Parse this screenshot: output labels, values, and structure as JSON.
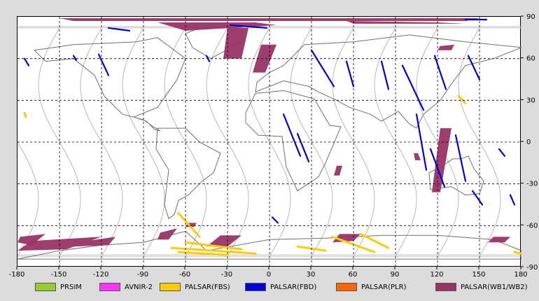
{
  "map": {
    "lon_range": [
      -180,
      180
    ],
    "lat_range": [
      -90,
      90
    ],
    "x_ticks": [
      "-180",
      "-150",
      "-120",
      "-90",
      "-60",
      "-30",
      "0",
      "30",
      "60",
      "90",
      "120",
      "150",
      "180"
    ],
    "y_ticks": [
      "90",
      "60",
      "30",
      "0",
      "-30",
      "-60",
      "-90"
    ]
  },
  "legend": [
    {
      "label": "PRSIM",
      "color": "#99cc33"
    },
    {
      "label": "AVNIR-2",
      "color": "#ff33ff"
    },
    {
      "label": "PALSAR(FBS)",
      "color": "#ffcc00"
    },
    {
      "label": "PALSAR(FBD)",
      "color": "#0000dd"
    },
    {
      "label": "PALSAR(PLR)",
      "color": "#ff6600"
    },
    {
      "label": "PALSAR(WB1/WB2)",
      "color": "#993366"
    }
  ],
  "observations": {
    "wb": [
      [
        [
          -150,
          89
        ],
        [
          150,
          89
        ],
        [
          140,
          87
        ],
        [
          -140,
          87
        ]
      ],
      [
        [
          -80,
          86
        ],
        [
          -10,
          86
        ],
        [
          5,
          84
        ],
        [
          -60,
          80
        ]
      ],
      [
        [
          55,
          87
        ],
        [
          120,
          86
        ],
        [
          140,
          85
        ],
        [
          60,
          85
        ]
      ],
      [
        [
          -30,
          82
        ],
        [
          -15,
          82
        ],
        [
          -20,
          60
        ],
        [
          -33,
          60
        ]
      ],
      [
        [
          -6,
          70
        ],
        [
          5,
          70
        ],
        [
          -3,
          50
        ],
        [
          -12,
          50
        ]
      ],
      [
        [
          122,
          10
        ],
        [
          130,
          10
        ],
        [
          122,
          -36
        ],
        [
          116,
          -36
        ]
      ],
      [
        [
          122,
          69
        ],
        [
          132,
          70
        ],
        [
          130,
          66
        ],
        [
          120,
          66
        ]
      ],
      [
        [
          48,
          -17
        ],
        [
          52,
          -17
        ],
        [
          50,
          -24
        ],
        [
          46,
          -24
        ]
      ],
      [
        [
          104,
          -13
        ],
        [
          108,
          -13
        ],
        [
          106,
          -8
        ],
        [
          103,
          -8
        ]
      ],
      [
        [
          -78,
          -65
        ],
        [
          -66,
          -62
        ],
        [
          -72,
          -70
        ],
        [
          -80,
          -70
        ]
      ],
      [
        [
          -178,
          -68
        ],
        [
          -160,
          -66
        ],
        [
          -170,
          -74
        ],
        [
          -180,
          -72
        ]
      ],
      [
        [
          -170,
          -71
        ],
        [
          -120,
          -68
        ],
        [
          -145,
          -77
        ],
        [
          -180,
          -78
        ]
      ],
      [
        [
          -130,
          -71
        ],
        [
          -110,
          -68
        ],
        [
          -115,
          -74
        ],
        [
          -140,
          -75
        ]
      ],
      [
        [
          -35,
          -67
        ],
        [
          -20,
          -67
        ],
        [
          -30,
          -75
        ],
        [
          -45,
          -75
        ]
      ],
      [
        [
          50,
          -66
        ],
        [
          65,
          -66
        ],
        [
          60,
          -71
        ],
        [
          45,
          -72
        ]
      ],
      [
        [
          160,
          -68
        ],
        [
          172,
          -68
        ],
        [
          168,
          -72
        ],
        [
          156,
          -72
        ]
      ],
      [
        [
          -58,
          -58
        ],
        [
          -52,
          -58
        ],
        [
          -54,
          -61
        ],
        [
          -60,
          -61
        ]
      ]
    ],
    "fbd": [
      [
        [
          -115,
          82
        ],
        [
          -100,
          80
        ]
      ],
      [
        [
          -140,
          62
        ],
        [
          -138,
          59
        ]
      ],
      [
        [
          -175,
          60
        ],
        [
          -172,
          55
        ]
      ],
      [
        [
          -122,
          63
        ],
        [
          -115,
          48
        ]
      ],
      [
        [
          -45,
          62
        ],
        [
          -43,
          58
        ]
      ],
      [
        [
          -28,
          84
        ],
        [
          -2,
          82
        ]
      ],
      [
        [
          30,
          66
        ],
        [
          46,
          40
        ]
      ],
      [
        [
          10,
          20
        ],
        [
          22,
          -10
        ]
      ],
      [
        [
          55,
          58
        ],
        [
          60,
          40
        ]
      ],
      [
        [
          80,
          58
        ],
        [
          85,
          38
        ]
      ],
      [
        [
          95,
          55
        ],
        [
          110,
          23
        ]
      ],
      [
        [
          118,
          62
        ],
        [
          126,
          38
        ]
      ],
      [
        [
          142,
          62
        ],
        [
          150,
          45
        ]
      ],
      [
        [
          140,
          88
        ],
        [
          155,
          88
        ]
      ],
      [
        [
          105,
          20
        ],
        [
          112,
          -20
        ]
      ],
      [
        [
          115,
          -5
        ],
        [
          125,
          -32
        ]
      ],
      [
        [
          133,
          5
        ],
        [
          140,
          -28
        ]
      ],
      [
        [
          145,
          -35
        ],
        [
          152,
          -45
        ]
      ],
      [
        [
          164,
          -5
        ],
        [
          168,
          -10
        ]
      ],
      [
        [
          172,
          -38
        ],
        [
          175,
          -45
        ]
      ],
      [
        [
          2,
          -54
        ],
        [
          6,
          -58
        ]
      ],
      [
        [
          20,
          6
        ],
        [
          28,
          -14
        ]
      ]
    ],
    "fbs": [
      [
        [
          -65,
          -51
        ],
        [
          -50,
          -68
        ]
      ],
      [
        [
          -60,
          -72
        ],
        [
          -20,
          -77
        ]
      ],
      [
        [
          -70,
          -76
        ],
        [
          -10,
          -80
        ]
      ],
      [
        [
          -65,
          -79
        ],
        [
          -30,
          -81
        ]
      ],
      [
        [
          20,
          -75
        ],
        [
          40,
          -78
        ]
      ],
      [
        [
          45,
          -68
        ],
        [
          75,
          -79
        ]
      ],
      [
        [
          65,
          -66
        ],
        [
          85,
          -76
        ]
      ],
      [
        [
          175,
          -79
        ],
        [
          180,
          -80
        ]
      ],
      [
        [
          -175,
          21
        ],
        [
          -174,
          18
        ]
      ],
      [
        [
          135,
          33
        ],
        [
          140,
          28
        ]
      ]
    ]
  }
}
